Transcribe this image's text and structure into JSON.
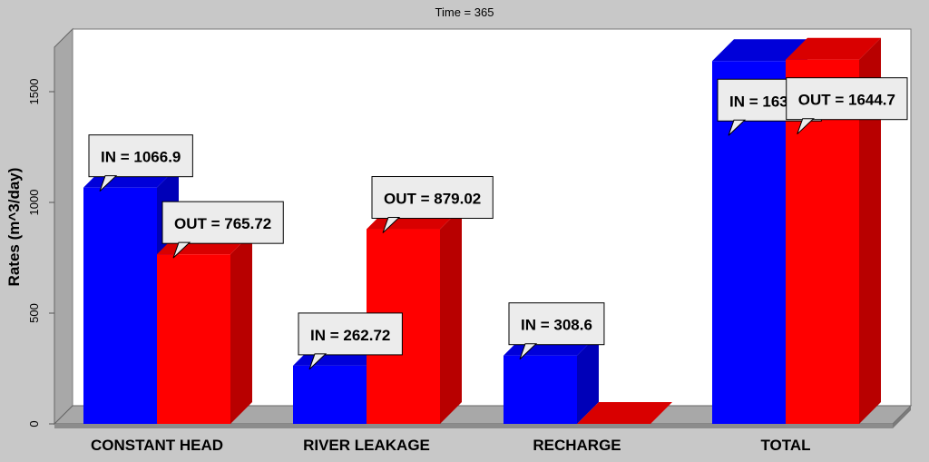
{
  "chart_data": {
    "type": "bar",
    "title": "Time = 365",
    "xlabel": "",
    "ylabel": "Rates (m^3/day)",
    "ylim": [
      0,
      1750
    ],
    "yticks": [
      0,
      500,
      1000,
      1500
    ],
    "grid": false,
    "legend": "none",
    "categories": [
      "CONSTANT HEAD",
      "RIVER LEAKAGE",
      "RECHARGE",
      "TOTAL"
    ],
    "series": [
      {
        "color": "#0000ff",
        "values": [
          1066.9,
          262.72,
          308.6,
          1638.2
        ]
      },
      {
        "color": "#ff0000",
        "values": [
          765.72,
          879.02,
          0,
          1644.7
        ]
      }
    ],
    "annotations": [
      {
        "category": 0,
        "series": 0,
        "text": "IN = 1066.9"
      },
      {
        "category": 0,
        "series": 1,
        "text": "OUT = 765.72"
      },
      {
        "category": 1,
        "series": 0,
        "text": "IN = 262.72"
      },
      {
        "category": 1,
        "series": 1,
        "text": "OUT = 879.02"
      },
      {
        "category": 2,
        "series": 0,
        "text": "IN = 308.6"
      },
      {
        "category": 3,
        "series": 0,
        "text": "IN = 1638.2"
      },
      {
        "category": 3,
        "series": 1,
        "text": "OUT = 1644.7"
      }
    ]
  }
}
